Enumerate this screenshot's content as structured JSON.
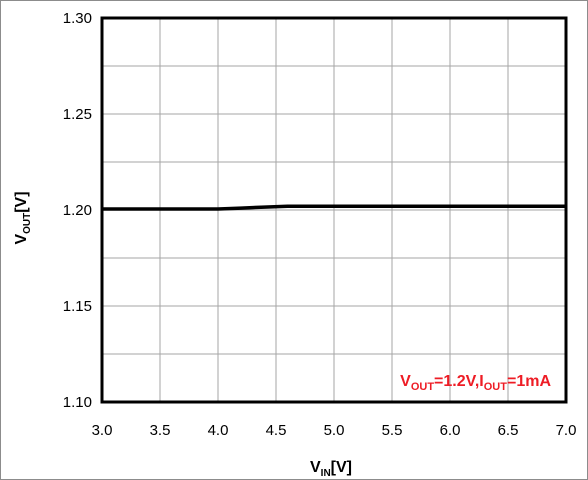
{
  "chart_data": {
    "type": "line",
    "xlabel": {
      "main": "V",
      "sub": "IN",
      "suffix": "[V]"
    },
    "ylabel": {
      "main": "V",
      "sub": "OUT",
      "suffix": "[V]"
    },
    "xlim": [
      3.0,
      7.0
    ],
    "ylim": [
      1.1,
      1.3
    ],
    "x_ticks": [
      3.0,
      3.5,
      4.0,
      4.5,
      5.0,
      5.5,
      6.0,
      6.5,
      7.0
    ],
    "x_tick_labels": [
      "3.0",
      "3.5",
      "4.0",
      "4.5",
      "5.0",
      "5.5",
      "6.0",
      "6.5",
      "7.0"
    ],
    "y_ticks": [
      1.1,
      1.15,
      1.2,
      1.25,
      1.3
    ],
    "y_tick_labels": [
      "1.10",
      "1.15",
      "1.20",
      "1.25",
      "1.30"
    ],
    "y_minor_step": 0.025,
    "grid": true,
    "series": [
      {
        "color": "#000000",
        "x": [
          3.0,
          3.5,
          4.0,
          4.2,
          4.4,
          4.6,
          5.0,
          5.5,
          6.0,
          6.5,
          7.0
        ],
        "y": [
          1.2005,
          1.2005,
          1.2005,
          1.201,
          1.2015,
          1.202,
          1.202,
          1.202,
          1.202,
          1.202,
          1.202
        ]
      }
    ],
    "annotation": {
      "parts": [
        {
          "text": "V",
          "sub": false
        },
        {
          "text": "OUT",
          "sub": true
        },
        {
          "text": "=1.2V,I",
          "sub": false
        },
        {
          "text": "OUT",
          "sub": true
        },
        {
          "text": "=1mA",
          "sub": false
        }
      ],
      "color": "#ee1c25",
      "placement": "bottom-right"
    }
  }
}
